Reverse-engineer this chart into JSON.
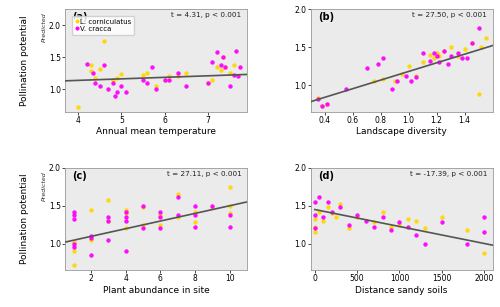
{
  "panel_a": {
    "label": "(a)",
    "xlabel": "Annual mean temperature",
    "stat_text": "t = 4.31, p < 0.001",
    "xlim": [
      3.7,
      7.9
    ],
    "ylim": [
      0.65,
      2.25
    ],
    "xticks": [
      4,
      5,
      6,
      7
    ],
    "yticks": [
      1.0,
      1.5,
      2.0
    ],
    "line_x": [
      3.7,
      7.9
    ],
    "line_y": [
      1.13,
      1.23
    ],
    "lc_x": [
      4.0,
      4.3,
      4.3,
      4.4,
      4.5,
      4.6,
      4.8,
      4.9,
      5.0,
      5.5,
      5.6,
      5.8,
      6.0,
      6.1,
      6.3,
      6.5,
      7.0,
      7.1,
      7.2,
      7.3,
      7.35,
      7.4,
      7.5,
      7.6
    ],
    "lc_y": [
      0.72,
      1.38,
      1.28,
      1.18,
      1.32,
      1.75,
      1.15,
      1.18,
      1.23,
      1.22,
      1.25,
      1.05,
      1.15,
      1.2,
      1.2,
      1.25,
      1.1,
      1.15,
      1.35,
      1.3,
      1.5,
      1.35,
      1.25,
      1.38
    ],
    "vc_x": [
      4.2,
      4.35,
      4.4,
      4.5,
      4.6,
      4.7,
      4.8,
      4.85,
      4.9,
      5.0,
      5.1,
      5.5,
      5.6,
      5.7,
      5.8,
      6.0,
      6.1,
      6.3,
      6.5,
      7.0,
      7.1,
      7.2,
      7.3,
      7.35,
      7.4,
      7.5,
      7.6,
      7.65,
      7.7,
      7.75
    ],
    "vc_y": [
      1.4,
      1.25,
      1.1,
      1.05,
      1.38,
      1.0,
      1.1,
      0.9,
      0.95,
      1.05,
      0.95,
      1.15,
      1.1,
      1.35,
      1.0,
      1.15,
      1.15,
      1.25,
      1.05,
      1.1,
      1.42,
      1.58,
      1.38,
      1.5,
      1.35,
      1.05,
      1.22,
      1.6,
      1.2,
      1.35
    ]
  },
  "panel_b": {
    "label": "(b)",
    "xlabel": "Landscape diversity",
    "stat_text": "t = 27.50, p < 0.001",
    "xlim": [
      0.3,
      1.6
    ],
    "ylim": [
      0.65,
      2.0
    ],
    "xticks": [
      0.4,
      0.6,
      0.8,
      1.0,
      1.2,
      1.4
    ],
    "yticks": [
      1.0,
      1.5,
      2.0
    ],
    "line_x": [
      0.3,
      1.6
    ],
    "line_y": [
      0.78,
      1.52
    ],
    "lc_x": [
      0.35,
      0.38,
      0.42,
      0.75,
      0.82,
      0.9,
      0.95,
      1.0,
      1.05,
      1.1,
      1.15,
      1.18,
      1.2,
      1.22,
      1.25,
      1.3,
      1.35,
      1.4,
      1.45,
      1.5,
      1.52,
      1.55
    ],
    "lc_y": [
      0.83,
      0.72,
      0.75,
      1.05,
      1.08,
      1.05,
      1.15,
      1.25,
      1.12,
      1.3,
      1.4,
      1.35,
      1.42,
      1.38,
      1.45,
      1.5,
      1.38,
      1.48,
      1.55,
      0.88,
      1.5,
      1.62
    ],
    "vc_x": [
      0.35,
      0.38,
      0.42,
      0.55,
      0.7,
      0.78,
      0.82,
      0.88,
      0.92,
      0.98,
      1.02,
      1.05,
      1.1,
      1.15,
      1.18,
      1.2,
      1.22,
      1.25,
      1.28,
      1.3,
      1.35,
      1.38,
      1.42,
      1.45,
      1.5
    ],
    "vc_y": [
      0.82,
      0.72,
      0.75,
      0.95,
      1.22,
      1.28,
      1.35,
      0.95,
      1.05,
      1.12,
      1.05,
      1.1,
      1.42,
      1.32,
      1.42,
      1.38,
      1.3,
      1.45,
      1.28,
      1.38,
      1.42,
      1.35,
      1.35,
      1.55,
      1.75
    ]
  },
  "panel_c": {
    "label": "(c)",
    "xlabel": "Plant abundance in site",
    "stat_text": "t = 27.11, p < 0.001",
    "xlim": [
      0.5,
      11.0
    ],
    "ylim": [
      0.65,
      2.0
    ],
    "xticks": [
      2,
      4,
      6,
      8,
      10
    ],
    "yticks": [
      1.0,
      1.5,
      2.0
    ],
    "line_x": [
      0.5,
      11.0
    ],
    "line_y": [
      1.02,
      1.55
    ],
    "lc_x": [
      1.0,
      1.0,
      1.0,
      2.0,
      2.0,
      3.0,
      3.0,
      4.0,
      4.0,
      4.0,
      5.0,
      5.0,
      6.0,
      6.0,
      7.0,
      7.0,
      8.0,
      8.0,
      9.0,
      10.0,
      10.0,
      10.0
    ],
    "lc_y": [
      1.02,
      0.72,
      0.9,
      1.05,
      1.45,
      1.3,
      1.58,
      1.4,
      1.2,
      1.45,
      1.25,
      1.48,
      1.25,
      1.38,
      1.35,
      1.65,
      1.42,
      1.28,
      1.48,
      1.5,
      1.4,
      1.75
    ],
    "vc_x": [
      1.0,
      1.0,
      1.0,
      1.0,
      1.0,
      2.0,
      2.0,
      2.0,
      3.0,
      3.0,
      3.0,
      4.0,
      4.0,
      4.0,
      4.0,
      5.0,
      5.0,
      6.0,
      6.0,
      6.0,
      7.0,
      7.0,
      8.0,
      8.0,
      8.0,
      9.0,
      10.0,
      10.0
    ],
    "vc_y": [
      0.95,
      1.0,
      1.32,
      1.38,
      1.42,
      1.08,
      1.1,
      0.85,
      1.35,
      1.05,
      1.3,
      1.35,
      0.9,
      1.3,
      1.42,
      1.2,
      1.5,
      1.35,
      1.2,
      1.42,
      1.38,
      1.62,
      1.38,
      1.5,
      1.22,
      1.5,
      1.38,
      1.22
    ]
  },
  "panel_d": {
    "label": "(d)",
    "xlabel": "Distance sandy soils",
    "stat_text": "t = -17.39, p < 0.001",
    "xlim": [
      -50,
      2100
    ],
    "ylim": [
      0.65,
      2.0
    ],
    "xticks": [
      0,
      500,
      1000,
      1500,
      2000
    ],
    "yticks": [
      1.0,
      1.5,
      2.0
    ],
    "line_x": [
      0,
      2100
    ],
    "line_y": [
      1.45,
      0.98
    ],
    "lc_x": [
      0,
      0,
      0,
      50,
      100,
      150,
      200,
      250,
      300,
      400,
      500,
      700,
      800,
      900,
      1000,
      1100,
      1200,
      1300,
      1500,
      1800,
      2000
    ],
    "lc_y": [
      1.32,
      1.22,
      1.15,
      1.42,
      1.3,
      1.48,
      1.4,
      1.35,
      1.52,
      1.2,
      1.35,
      1.28,
      1.42,
      1.22,
      1.25,
      1.32,
      1.3,
      1.2,
      1.35,
      1.18,
      0.88
    ],
    "vc_x": [
      0,
      0,
      0,
      50,
      100,
      150,
      200,
      300,
      400,
      500,
      600,
      700,
      800,
      900,
      1000,
      1100,
      1200,
      1300,
      1500,
      1800,
      2000,
      2000
    ],
    "vc_y": [
      1.55,
      1.38,
      1.2,
      1.62,
      1.35,
      1.55,
      1.42,
      1.48,
      1.25,
      1.38,
      1.3,
      1.22,
      1.35,
      1.18,
      1.28,
      1.22,
      1.12,
      1.0,
      1.28,
      1.0,
      1.35,
      1.15
    ]
  },
  "ylabel_main": "Pollination potential",
  "ylabel_super": "Predicted",
  "lc_color": "#FFD700",
  "vc_color": "#FF00FF",
  "line_color": "#555555",
  "bg_color": "#ebebeb",
  "legend_species": [
    "L. corniculatus",
    "V. cracca"
  ]
}
